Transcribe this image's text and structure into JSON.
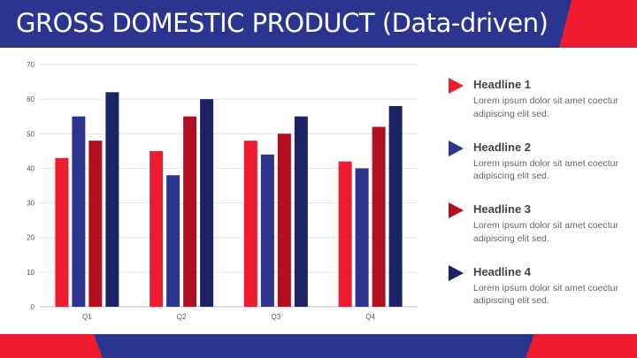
{
  "header": {
    "title": "GROSS DOMESTIC PRODUCT (Data-driven)"
  },
  "colors": {
    "red": "#ee1c2e",
    "blue": "#2b3590",
    "dark_red": "#b01020",
    "navy": "#1c2266",
    "grid": "#e2e2e2"
  },
  "chart_data": {
    "type": "bar",
    "categories": [
      "Q1",
      "Q2",
      "Q3",
      "Q4"
    ],
    "series": [
      {
        "values": [
          43,
          45,
          48,
          42
        ],
        "color": "#ee1c2e"
      },
      {
        "values": [
          55,
          38,
          44,
          40
        ],
        "color": "#2b3590"
      },
      {
        "values": [
          48,
          55,
          50,
          52
        ],
        "color": "#b01020"
      },
      {
        "values": [
          62,
          60,
          55,
          58
        ],
        "color": "#1c2266"
      }
    ],
    "ylim": [
      0,
      70
    ],
    "yticks": [
      0,
      10,
      20,
      30,
      40,
      50,
      60,
      70
    ],
    "grid": true
  },
  "sidebar": {
    "items": [
      {
        "headline": "Headline 1",
        "text": "Lorem ipsum dolor sit amet coectur adipiscing elit sed.",
        "color": "#ee1c2e"
      },
      {
        "headline": "Headline 2",
        "text": "Lorem ipsum dolor sit amet coectur adipiscing elit sed.",
        "color": "#2b3590"
      },
      {
        "headline": "Headline 3",
        "text": "Lorem ipsum dolor sit amet coectur adipiscing elit sed.",
        "color": "#b01020"
      },
      {
        "headline": "Headline 4",
        "text": "Lorem ipsum dolor sit amet coectur adipiscing elit sed.",
        "color": "#1c2266"
      }
    ]
  }
}
